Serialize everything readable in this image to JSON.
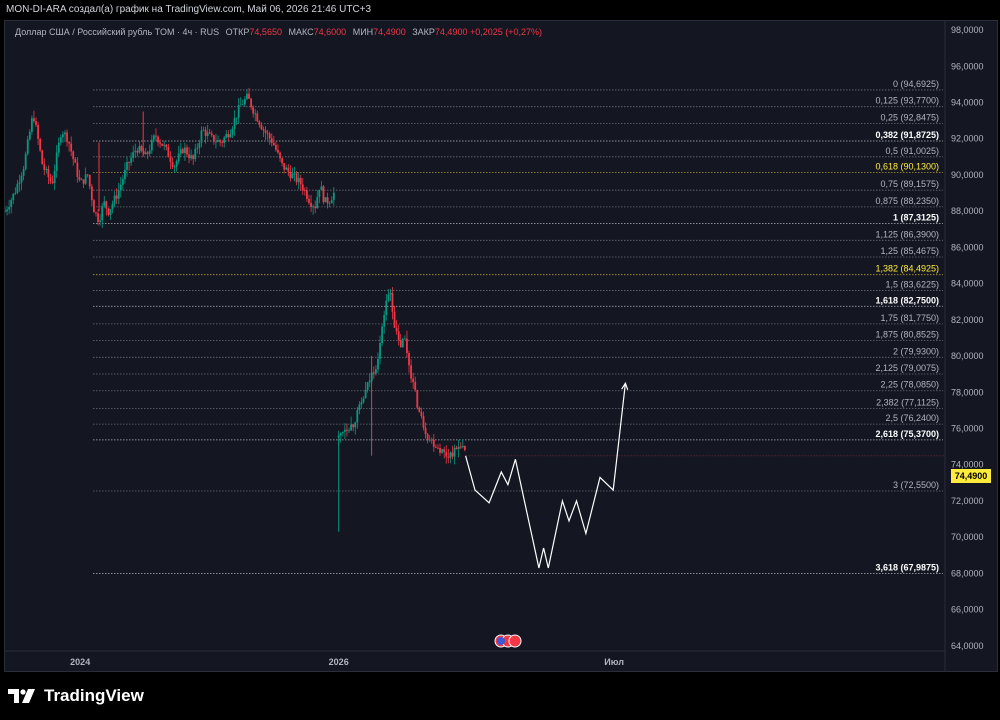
{
  "header": {
    "text": "MON-DI-ARA создал(а) график на TradingView.com, Май 06, 2026 21:46 UTC+3"
  },
  "legend": {
    "symbol": "Доллар США / Российский рубль TOM · 4ч · RUS",
    "open_label": "ОТКР",
    "open": "74,5650",
    "high_label": "МАКС",
    "high": "74,6000",
    "low_label": "МИН",
    "low": "74,4900",
    "close_label": "ЗАКР",
    "close": "74,4900",
    "change": "+0,2025 (+0,27%)"
  },
  "current_price": "74,4900",
  "brand": "TradingView",
  "colors": {
    "up": "#089981",
    "down": "#f23645",
    "accent": "#ffeb3b",
    "fib_line": "#787b86"
  },
  "chart_data": {
    "type": "line",
    "title": "",
    "xlabel": "",
    "ylabel": "",
    "ylim": [
      62.5,
      98.5
    ],
    "y_ticks": [
      "98,0000",
      "96,0000",
      "94,0000",
      "92,0000",
      "90,0000",
      "88,0000",
      "86,0000",
      "84,0000",
      "82,0000",
      "80,0000",
      "78,0000",
      "76,0000",
      "74,0000",
      "72,0000",
      "70,0000",
      "68,0000",
      "66,0000",
      "64,0000"
    ],
    "x_ticks": [
      {
        "label": "2024",
        "t": 0.08
      },
      {
        "label": "2026",
        "t": 0.355
      },
      {
        "label": "Июл",
        "t": 0.648
      }
    ],
    "fib_levels": [
      {
        "label": "0 (94,6925)",
        "value": 94.6925,
        "style": "normal"
      },
      {
        "label": "0,125 (93,7700)",
        "value": 93.77,
        "style": "normal"
      },
      {
        "label": "0,25 (92,8475)",
        "value": 92.8475,
        "style": "normal"
      },
      {
        "label": "0,382 (91,8725)",
        "value": 91.8725,
        "style": "bold"
      },
      {
        "label": "0,5 (91,0025)",
        "value": 91.0025,
        "style": "normal"
      },
      {
        "label": "0,618 (90,1300)",
        "value": 90.13,
        "style": "gold"
      },
      {
        "label": "0,75 (89,1575)",
        "value": 89.1575,
        "style": "normal"
      },
      {
        "label": "0,875 (88,2350)",
        "value": 88.235,
        "style": "normal"
      },
      {
        "label": "1 (87,3125)",
        "value": 87.3125,
        "style": "bold"
      },
      {
        "label": "1,125 (86,3900)",
        "value": 86.39,
        "style": "normal"
      },
      {
        "label": "1,25 (85,4675)",
        "value": 85.4675,
        "style": "normal"
      },
      {
        "label": "1,382 (84,4925)",
        "value": 84.4925,
        "style": "gold"
      },
      {
        "label": "1,5 (83,6225)",
        "value": 83.6225,
        "style": "normal"
      },
      {
        "label": "1,618 (82,7500)",
        "value": 82.75,
        "style": "bold"
      },
      {
        "label": "1,75 (81,7750)",
        "value": 81.775,
        "style": "normal"
      },
      {
        "label": "1,875 (80,8525)",
        "value": 80.8525,
        "style": "normal"
      },
      {
        "label": "2 (79,9300)",
        "value": 79.93,
        "style": "normal"
      },
      {
        "label": "2,125 (79,0075)",
        "value": 79.0075,
        "style": "normal"
      },
      {
        "label": "2,25 (78,0850)",
        "value": 78.085,
        "style": "normal"
      },
      {
        "label": "2,382 (77,1125)",
        "value": 77.1125,
        "style": "normal"
      },
      {
        "label": "2,5 (76,2400)",
        "value": 76.24,
        "style": "normal"
      },
      {
        "label": "2,618 (75,3700)",
        "value": 75.37,
        "style": "bold"
      },
      {
        "label": "3 (72,5500)",
        "value": 72.55,
        "style": "normal"
      },
      {
        "label": "3,618 (67,9875)",
        "value": 67.9875,
        "style": "bold"
      }
    ],
    "price_path": [
      [
        0.0,
        88.0
      ],
      [
        0.01,
        89.0
      ],
      [
        0.02,
        90.5
      ],
      [
        0.03,
        93.4
      ],
      [
        0.035,
        92.0
      ],
      [
        0.04,
        90.5
      ],
      [
        0.05,
        89.5
      ],
      [
        0.06,
        92.5
      ],
      [
        0.067,
        92.0
      ],
      [
        0.072,
        91.0
      ],
      [
        0.08,
        89.5
      ],
      [
        0.088,
        90.0
      ],
      [
        0.095,
        88.0
      ],
      [
        0.1,
        87.5
      ],
      [
        0.105,
        88.5
      ],
      [
        0.11,
        88.0
      ],
      [
        0.12,
        89.0
      ],
      [
        0.13,
        90.5
      ],
      [
        0.14,
        91.5
      ],
      [
        0.15,
        91.0
      ],
      [
        0.16,
        92.2
      ],
      [
        0.17,
        91.5
      ],
      [
        0.18,
        90.5
      ],
      [
        0.19,
        91.5
      ],
      [
        0.2,
        90.8
      ],
      [
        0.21,
        92.5
      ],
      [
        0.22,
        92.0
      ],
      [
        0.23,
        91.8
      ],
      [
        0.24,
        92.5
      ],
      [
        0.25,
        93.8
      ],
      [
        0.258,
        94.3
      ],
      [
        0.265,
        93.5
      ],
      [
        0.275,
        92.5
      ],
      [
        0.285,
        91.8
      ],
      [
        0.295,
        90.5
      ],
      [
        0.305,
        90.0
      ],
      [
        0.315,
        89.5
      ],
      [
        0.325,
        88.5
      ],
      [
        0.33,
        88.3
      ],
      [
        0.335,
        89.5
      ],
      [
        0.34,
        88.5
      ],
      [
        0.345,
        88.6
      ],
      [
        0.35,
        89.0
      ]
    ],
    "price_path_2": [
      [
        0.355,
        75.5
      ],
      [
        0.36,
        76.0
      ],
      [
        0.37,
        76.2
      ],
      [
        0.38,
        77.5
      ],
      [
        0.39,
        79.0
      ],
      [
        0.395,
        79.5
      ],
      [
        0.4,
        81.0
      ],
      [
        0.405,
        83.0
      ],
      [
        0.41,
        83.5
      ],
      [
        0.415,
        81.5
      ],
      [
        0.42,
        80.5
      ],
      [
        0.425,
        81.0
      ],
      [
        0.43,
        79.5
      ],
      [
        0.44,
        77.0
      ],
      [
        0.45,
        75.5
      ],
      [
        0.46,
        75.0
      ],
      [
        0.47,
        74.5
      ],
      [
        0.48,
        74.8
      ],
      [
        0.485,
        75.2
      ],
      [
        0.49,
        74.5
      ]
    ],
    "projection": [
      [
        0.49,
        74.49
      ],
      [
        0.5,
        72.6
      ],
      [
        0.515,
        71.9
      ],
      [
        0.528,
        73.6
      ],
      [
        0.535,
        72.9
      ],
      [
        0.543,
        74.3
      ],
      [
        0.568,
        68.3
      ],
      [
        0.573,
        69.4
      ],
      [
        0.578,
        68.3
      ],
      [
        0.593,
        72.0
      ],
      [
        0.6,
        70.9
      ],
      [
        0.608,
        72.0
      ],
      [
        0.618,
        70.2
      ],
      [
        0.633,
        73.3
      ],
      [
        0.647,
        72.6
      ],
      [
        0.66,
        78.5
      ]
    ]
  }
}
